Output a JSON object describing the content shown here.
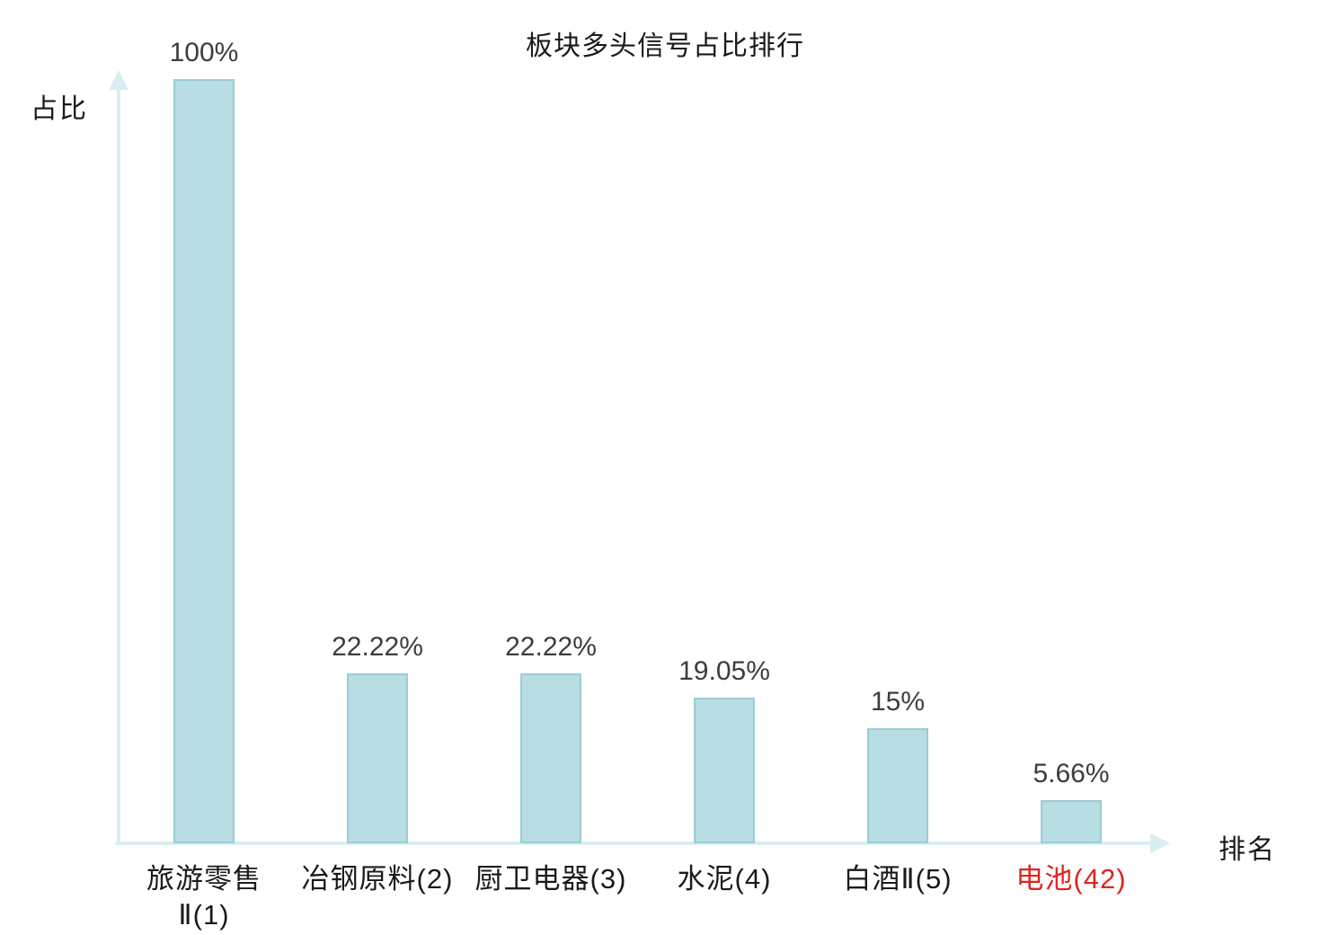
{
  "chart_data": {
    "type": "bar",
    "title": "板块多头信号占比排行",
    "xlabel": "排名",
    "ylabel": "占比",
    "categories": [
      "旅游零售\nⅡ(1)",
      "冶钢原料(2)",
      "厨卫电器(3)",
      "水泥(4)",
      "白酒Ⅱ(5)",
      "电池(42)"
    ],
    "values": [
      100,
      22.22,
      22.22,
      19.05,
      15,
      5.66
    ],
    "value_labels": [
      "100%",
      "22.22%",
      "22.22%",
      "19.05%",
      "15%",
      "5.66%"
    ],
    "ylim": [
      0,
      100
    ],
    "grid": false,
    "legend": "none",
    "highlighted_category_index": 5,
    "colors": {
      "bar_fill": "#b8dde2",
      "bar_border": "#9bccd4",
      "axis": "#d9eef0",
      "title_text": "#1a1a1a",
      "value_text": "#3d3d3d",
      "tick_text": "#1a1a1a",
      "highlight_tick_text": "#e02420"
    }
  }
}
